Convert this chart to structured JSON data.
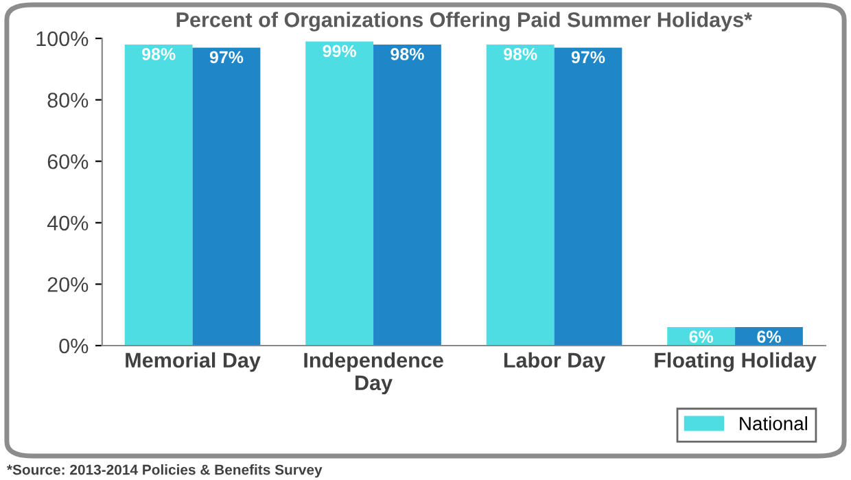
{
  "chart_data": {
    "type": "bar",
    "title": "Percent of Organizations Offering Paid Summer Holidays*",
    "categories": [
      "Memorial Day",
      "Independence\nDay",
      "Labor Day",
      "Floating Holiday"
    ],
    "series": [
      {
        "name": "National",
        "color": "#4ddde3",
        "values": [
          98,
          99,
          98,
          6
        ],
        "value_labels": [
          "98%",
          "99%",
          "98%",
          "6%"
        ]
      },
      {
        "color": "#1f86c8",
        "values": [
          97,
          98,
          97,
          6
        ],
        "value_labels": [
          "97%",
          "98%",
          "97%",
          "6%"
        ]
      }
    ],
    "ylim": [
      0,
      100
    ],
    "yticks": [
      {
        "value": 0,
        "label": "0%"
      },
      {
        "value": 20,
        "label": "20%"
      },
      {
        "value": 40,
        "label": "40%"
      },
      {
        "value": 60,
        "label": "60%"
      },
      {
        "value": 80,
        "label": "80%"
      },
      {
        "value": 100,
        "label": "100%"
      }
    ],
    "legend": "bottom right",
    "annotations": [
      "*Source: 2013-2014 Policies & Benefits Survey"
    ]
  }
}
